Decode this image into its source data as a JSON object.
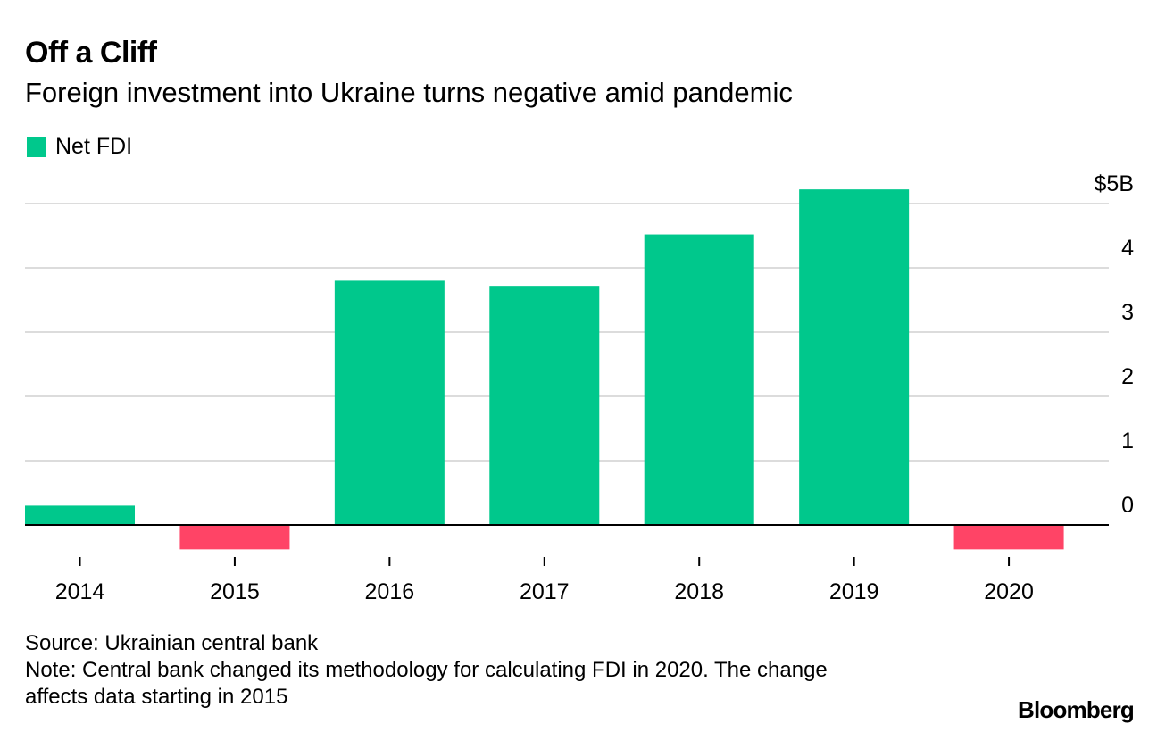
{
  "header": {
    "title": "Off a Cliff",
    "subtitle": "Foreign investment into Ukraine turns negative amid pandemic"
  },
  "legend": {
    "label": "Net FDI",
    "color": "#00c88c"
  },
  "chart_data": {
    "type": "bar",
    "title": "Off a Cliff",
    "subtitle": "Foreign investment into Ukraine turns negative amid pandemic",
    "categories": [
      "2014",
      "2015",
      "2016",
      "2017",
      "2018",
      "2019",
      "2020"
    ],
    "series": [
      {
        "name": "Net FDI",
        "values": [
          0.3,
          -0.38,
          3.8,
          3.72,
          4.52,
          5.22,
          -0.38
        ]
      }
    ],
    "ylim": [
      -0.5,
      5
    ],
    "yticks": [
      0,
      1,
      2,
      3,
      4,
      5
    ],
    "ytick_labels": [
      "0",
      "1",
      "2",
      "3",
      "4",
      "$5B"
    ],
    "xlabel": "",
    "ylabel": "",
    "positive_color": "#00c88c",
    "negative_color": "#ff4466",
    "grid": true,
    "legend_position": "top-left"
  },
  "footer": {
    "source": "Source: Ukrainian central bank",
    "note_line1": "Note: Central bank changed its methodology for calculating FDI in 2020. The change",
    "note_line2": "affects data starting in 2015",
    "brand": "Bloomberg"
  }
}
